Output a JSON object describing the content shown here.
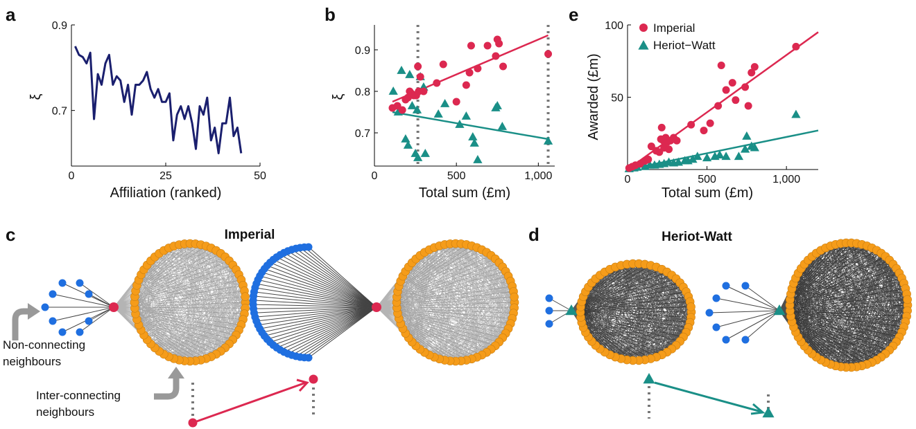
{
  "panels": {
    "a": "a",
    "b": "b",
    "c": "c",
    "d": "d",
    "e": "e"
  },
  "colors": {
    "imperial": "#dc2850",
    "heriot_watt": "#1a8f87",
    "series_a": "#1a1f6e",
    "outer_nodes": "#1f6fe0",
    "inner_nodes": "#f59c1a",
    "guide": "#777777"
  },
  "network": {
    "title_c": "Imperial",
    "title_d": "Heriot-Watt",
    "label_non_connecting": [
      "Non-connecting",
      "neighbours"
    ],
    "label_inter_connecting": [
      "Inter-connecting",
      "neighbours"
    ],
    "marker_imperial": "circle",
    "marker_heriot_watt": "triangle"
  },
  "chart_data": [
    {
      "panel": "a",
      "type": "line",
      "xlabel": "Affiliation (ranked)",
      "ylabel": "ξ",
      "xlim": [
        0,
        50
      ],
      "ylim": [
        0.57,
        0.9
      ],
      "xticks": [
        "0",
        "25",
        "50"
      ],
      "yticks": [
        "0.7",
        "0.9"
      ],
      "x": [
        1,
        2,
        3,
        4,
        5,
        6,
        7,
        8,
        9,
        10,
        11,
        12,
        13,
        14,
        15,
        16,
        17,
        18,
        19,
        20,
        21,
        22,
        23,
        24,
        25,
        26,
        27,
        28,
        29,
        30,
        31,
        32,
        33,
        34,
        35,
        36,
        37,
        38,
        39,
        40,
        41,
        42,
        43,
        44,
        45
      ],
      "y": [
        0.85,
        0.83,
        0.825,
        0.81,
        0.835,
        0.68,
        0.785,
        0.76,
        0.81,
        0.83,
        0.76,
        0.78,
        0.77,
        0.72,
        0.76,
        0.69,
        0.76,
        0.76,
        0.77,
        0.79,
        0.75,
        0.73,
        0.75,
        0.72,
        0.72,
        0.74,
        0.63,
        0.69,
        0.71,
        0.68,
        0.71,
        0.67,
        0.61,
        0.71,
        0.69,
        0.73,
        0.63,
        0.66,
        0.6,
        0.67,
        0.67,
        0.73,
        0.64,
        0.66,
        0.6
      ],
      "grid": false
    },
    {
      "panel": "b",
      "type": "scatter",
      "xlabel": "Total sum (£m)",
      "ylabel": "ξ",
      "xlim": [
        0,
        1100
      ],
      "ylim": [
        0.62,
        0.96
      ],
      "xticks": [
        "0",
        "500",
        "1,000"
      ],
      "yticks": [
        "0.7",
        "0.8",
        "0.9"
      ],
      "vlines": [
        265,
        1060
      ],
      "series": [
        {
          "name": "Imperial",
          "marker": "circle",
          "points": [
            [
              110,
              0.76
            ],
            [
              140,
              0.765
            ],
            [
              170,
              0.755
            ],
            [
              190,
              0.78
            ],
            [
              205,
              0.785
            ],
            [
              215,
              0.8
            ],
            [
              225,
              0.795
            ],
            [
              240,
              0.79
            ],
            [
              255,
              0.79
            ],
            [
              270,
              0.8
            ],
            [
              265,
              0.86
            ],
            [
              280,
              0.835
            ],
            [
              300,
              0.8
            ],
            [
              380,
              0.82
            ],
            [
              420,
              0.865
            ],
            [
              500,
              0.775
            ],
            [
              560,
              0.815
            ],
            [
              580,
              0.845
            ],
            [
              590,
              0.91
            ],
            [
              630,
              0.855
            ],
            [
              690,
              0.91
            ],
            [
              740,
              0.885
            ],
            [
              750,
              0.925
            ],
            [
              760,
              0.915
            ],
            [
              785,
              0.86
            ],
            [
              1060,
              0.89
            ]
          ],
          "fit": [
            [
              110,
              0.775
            ],
            [
              1060,
              0.935
            ]
          ]
        },
        {
          "name": "Heriot-Watt",
          "marker": "triangle",
          "points": [
            [
              115,
              0.8
            ],
            [
              145,
              0.75
            ],
            [
              165,
              0.85
            ],
            [
              190,
              0.685
            ],
            [
              205,
              0.67
            ],
            [
              215,
              0.84
            ],
            [
              230,
              0.765
            ],
            [
              250,
              0.65
            ],
            [
              260,
              0.755
            ],
            [
              265,
              0.64
            ],
            [
              280,
              0.835
            ],
            [
              300,
              0.81
            ],
            [
              310,
              0.65
            ],
            [
              390,
              0.745
            ],
            [
              430,
              0.77
            ],
            [
              520,
              0.72
            ],
            [
              560,
              0.74
            ],
            [
              600,
              0.69
            ],
            [
              610,
              0.675
            ],
            [
              630,
              0.635
            ],
            [
              740,
              0.76
            ],
            [
              750,
              0.765
            ],
            [
              780,
              0.715
            ],
            [
              1060,
              0.68
            ]
          ],
          "fit": [
            [
              110,
              0.75
            ],
            [
              1060,
              0.685
            ]
          ]
        }
      ]
    },
    {
      "panel": "e",
      "type": "scatter",
      "xlabel": "Total sum (£m)",
      "ylabel": "Awarded (£m)",
      "xlim": [
        0,
        1200
      ],
      "ylim": [
        0,
        100
      ],
      "xticks": [
        "0",
        "500",
        "1,000"
      ],
      "yticks": [
        "50",
        "100"
      ],
      "legend": [
        "Imperial",
        "Heriot−Watt"
      ],
      "legend_position": "top-left",
      "series": [
        {
          "name": "Imperial",
          "marker": "circle",
          "points": [
            [
              10,
              1
            ],
            [
              30,
              2
            ],
            [
              50,
              3
            ],
            [
              80,
              4
            ],
            [
              110,
              6
            ],
            [
              130,
              7
            ],
            [
              150,
              16
            ],
            [
              180,
              13
            ],
            [
              200,
              12
            ],
            [
              210,
              21
            ],
            [
              215,
              29
            ],
            [
              225,
              20
            ],
            [
              230,
              15
            ],
            [
              240,
              22
            ],
            [
              250,
              19
            ],
            [
              260,
              14
            ],
            [
              270,
              20
            ],
            [
              290,
              22
            ],
            [
              310,
              20
            ],
            [
              400,
              31
            ],
            [
              480,
              27
            ],
            [
              520,
              32
            ],
            [
              570,
              44
            ],
            [
              590,
              72
            ],
            [
              620,
              55
            ],
            [
              660,
              60
            ],
            [
              680,
              48
            ],
            [
              740,
              57
            ],
            [
              760,
              44
            ],
            [
              780,
              67
            ],
            [
              800,
              71
            ],
            [
              1060,
              85
            ]
          ],
          "fit": [
            [
              0,
              0
            ],
            [
              1200,
              95
            ]
          ]
        },
        {
          "name": "Heriot-Watt",
          "marker": "triangle",
          "points": [
            [
              10,
              0.5
            ],
            [
              40,
              1
            ],
            [
              60,
              1.5
            ],
            [
              110,
              2
            ],
            [
              140,
              3
            ],
            [
              170,
              3
            ],
            [
              200,
              3.5
            ],
            [
              230,
              4
            ],
            [
              260,
              5
            ],
            [
              290,
              4.5
            ],
            [
              320,
              5
            ],
            [
              360,
              6
            ],
            [
              380,
              6
            ],
            [
              410,
              7
            ],
            [
              440,
              9
            ],
            [
              500,
              8
            ],
            [
              550,
              9
            ],
            [
              580,
              10
            ],
            [
              620,
              9
            ],
            [
              700,
              9
            ],
            [
              740,
              14
            ],
            [
              750,
              23
            ],
            [
              780,
              16
            ],
            [
              800,
              15
            ],
            [
              1060,
              38
            ]
          ],
          "fit": [
            [
              0,
              0
            ],
            [
              1200,
              27
            ]
          ]
        }
      ]
    }
  ]
}
